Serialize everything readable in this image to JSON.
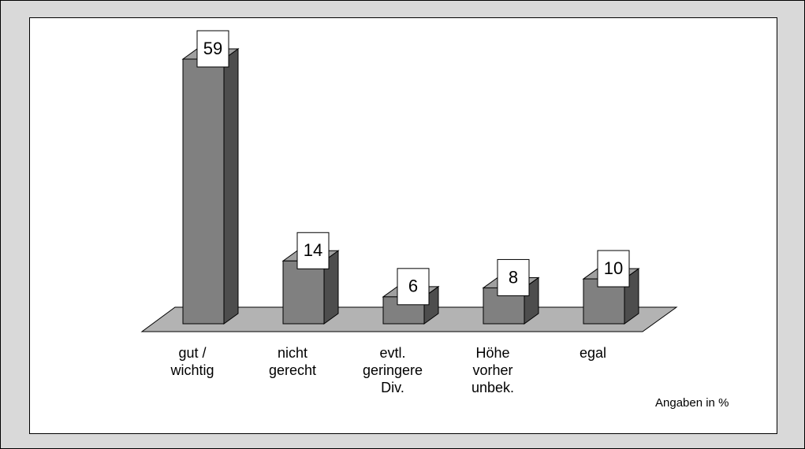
{
  "chart_data": {
    "type": "bar3d",
    "categories": [
      [
        "gut /",
        "wichtig"
      ],
      [
        "nicht",
        "gerecht"
      ],
      [
        "evtl.",
        "geringere",
        "Div."
      ],
      [
        "Höhe",
        "vorher",
        "unbek."
      ],
      [
        "egal"
      ]
    ],
    "values": [
      59,
      14,
      6,
      8,
      10
    ],
    "color": "#808080",
    "annotation": "Angaben in %"
  }
}
